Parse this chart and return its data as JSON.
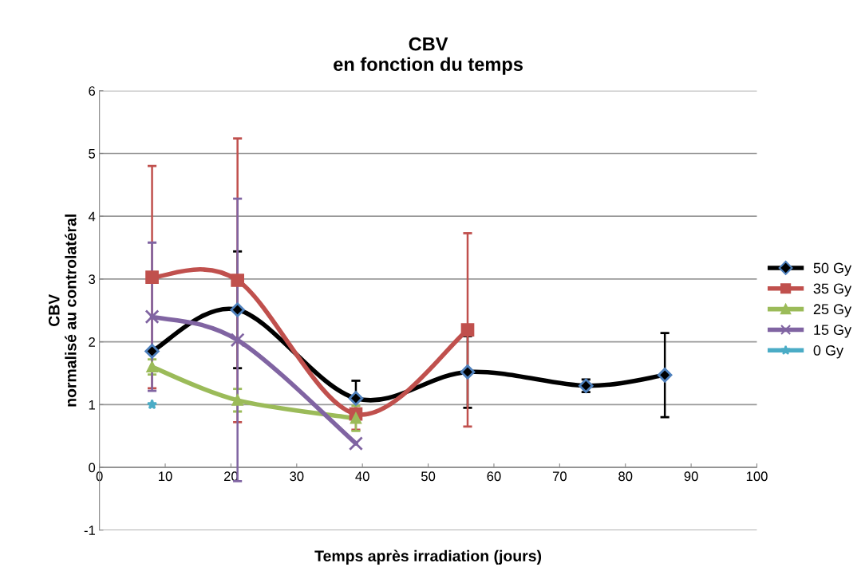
{
  "chart_data": {
    "type": "line",
    "title": "CBV\nen fonction du temps",
    "xlabel": "Temps après irradiation (jours)",
    "ylabel": "CBV\nnormalisé au controlatéral",
    "xlim": [
      0,
      100
    ],
    "xticks": [
      0,
      10,
      20,
      30,
      40,
      50,
      60,
      70,
      80,
      90,
      100
    ],
    "ylim": [
      -1,
      6
    ],
    "yticks": [
      -1,
      0,
      1,
      2,
      3,
      4,
      5,
      6
    ],
    "grid": "y",
    "legend": "right",
    "series": [
      {
        "name": "50 Gy",
        "color": "#000000",
        "marker": "diamond",
        "x": [
          8,
          21,
          39,
          56,
          74,
          86
        ],
        "values": [
          1.85,
          2.51,
          1.1,
          1.52,
          1.3,
          1.47
        ],
        "errors": [
          null,
          0.93,
          0.28,
          0.57,
          0.1,
          0.67
        ]
      },
      {
        "name": "35 Gy",
        "color": "#c0504d",
        "marker": "square",
        "x": [
          8,
          21,
          39,
          56
        ],
        "values": [
          3.03,
          2.98,
          0.85,
          2.19
        ],
        "errors": [
          1.77,
          2.26,
          0.25,
          1.54
        ]
      },
      {
        "name": "25 Gy",
        "color": "#9bbb59",
        "marker": "triangle",
        "x": [
          8,
          21,
          39
        ],
        "values": [
          1.6,
          1.07,
          0.78
        ],
        "errors": [
          0.12,
          0.18,
          0.2
        ]
      },
      {
        "name": "15 Gy",
        "color": "#8064a2",
        "marker": "cross",
        "x": [
          8,
          21,
          39
        ],
        "values": [
          2.4,
          2.03,
          0.38
        ],
        "errors": [
          1.18,
          2.25,
          null
        ]
      },
      {
        "name": "0 Gy",
        "color": "#4bacc6",
        "marker": "star",
        "x": [
          8
        ],
        "values": [
          1.0
        ],
        "errors": [
          null
        ]
      }
    ]
  }
}
